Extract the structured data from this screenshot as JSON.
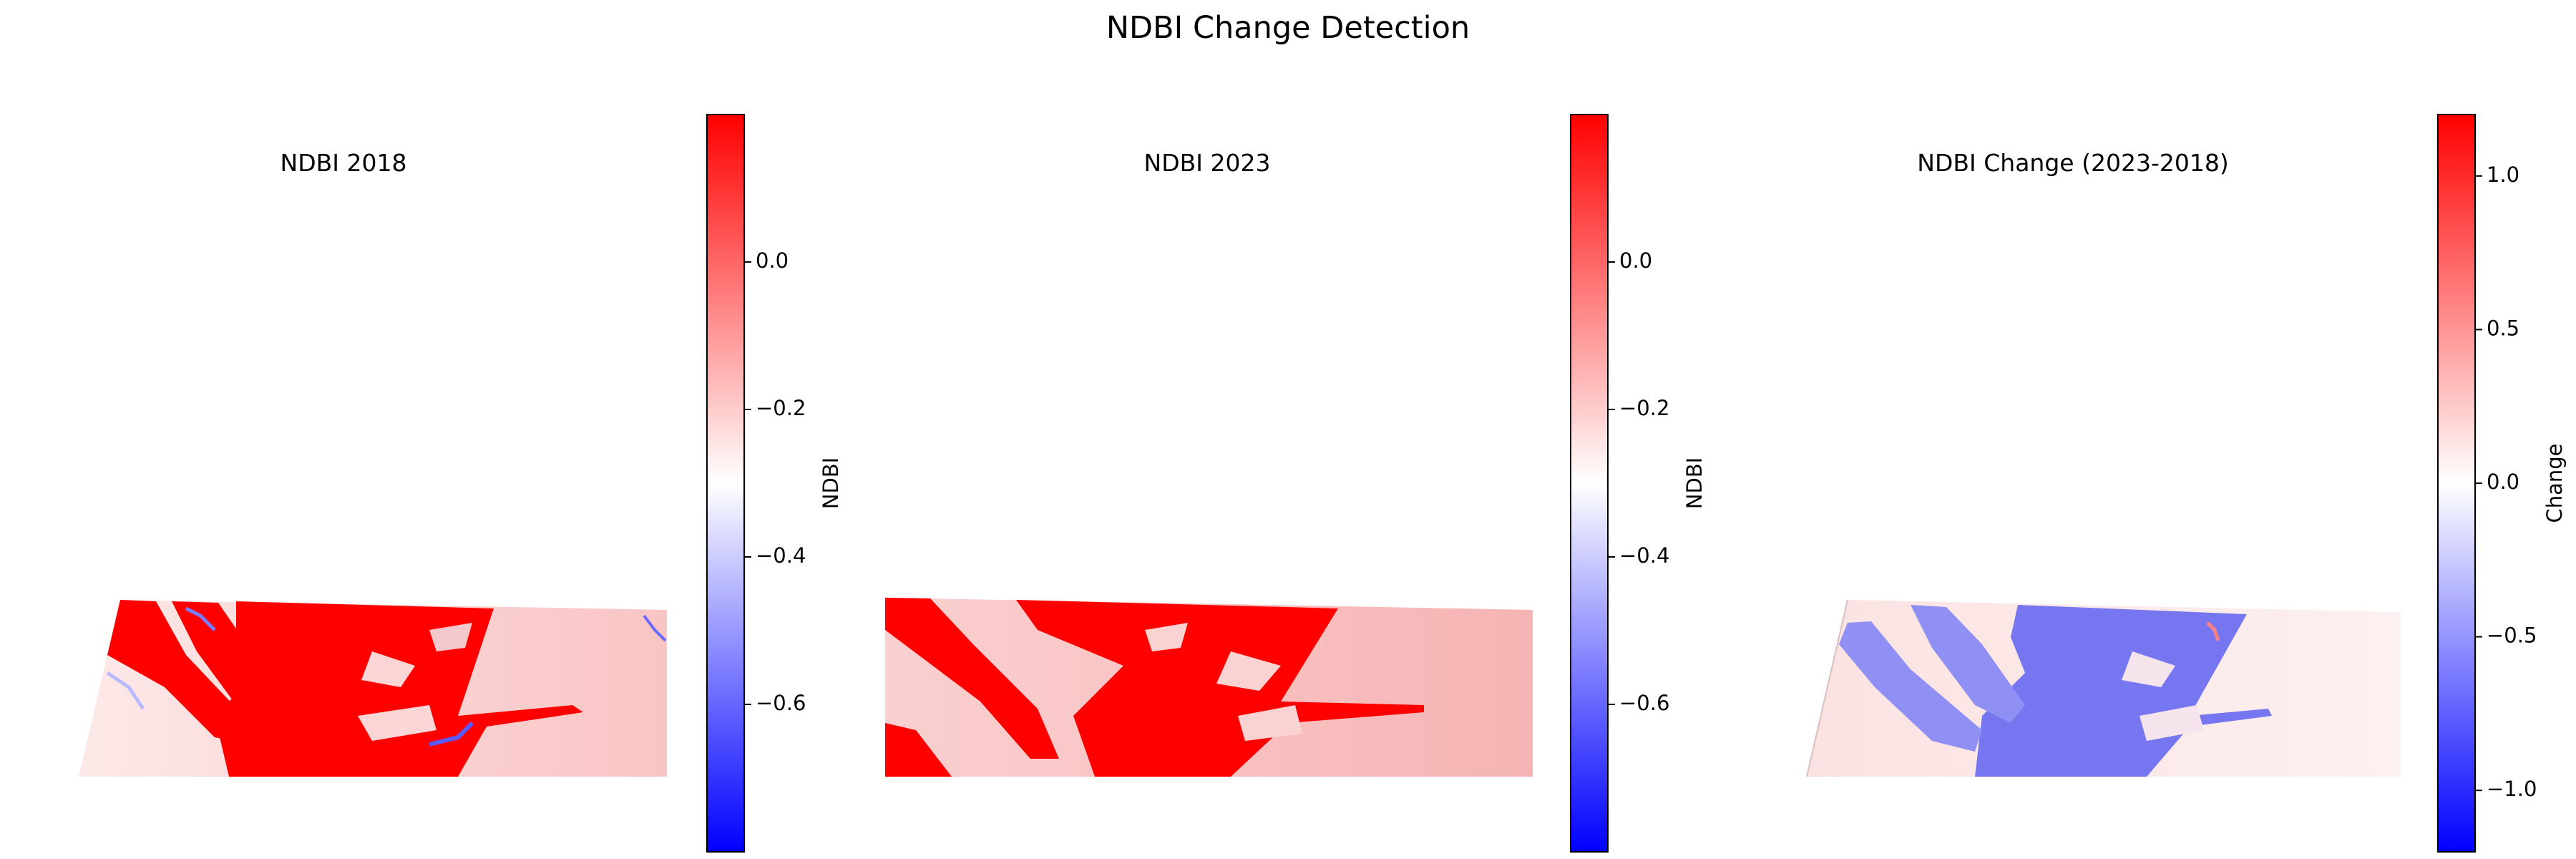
{
  "title": "NDBI Change Detection",
  "chart_data": [
    {
      "type": "heatmap",
      "title": "NDBI 2018",
      "colormap": "bwr",
      "colorbar": {
        "label": "NDBI",
        "vmin": -0.8,
        "vmax": 0.2,
        "ticks": [
          0.0,
          -0.2,
          -0.4,
          -0.6
        ],
        "tick_labels": [
          "0.0",
          "−0.2",
          "−0.4",
          "−0.6"
        ]
      },
      "grid": false
    },
    {
      "type": "heatmap",
      "title": "NDBI 2023",
      "colormap": "bwr",
      "colorbar": {
        "label": "NDBI",
        "vmin": -0.8,
        "vmax": 0.2,
        "ticks": [
          0.0,
          -0.2,
          -0.4,
          -0.6
        ],
        "tick_labels": [
          "0.0",
          "−0.2",
          "−0.4",
          "−0.6"
        ]
      },
      "grid": false
    },
    {
      "type": "heatmap",
      "title": "NDBI Change (2023-2018)",
      "colormap": "bwr",
      "colorbar": {
        "label": "Change",
        "vmin": -1.2,
        "vmax": 1.2,
        "ticks": [
          1.0,
          0.5,
          0.0,
          -0.5,
          -1.0
        ],
        "tick_labels": [
          "1.0",
          "0.5",
          "0.0",
          "−0.5",
          "−1.0"
        ]
      },
      "grid": false
    }
  ],
  "colors": {
    "red": "#ff0000",
    "white": "#ffffff",
    "blue": "#0000ff"
  }
}
